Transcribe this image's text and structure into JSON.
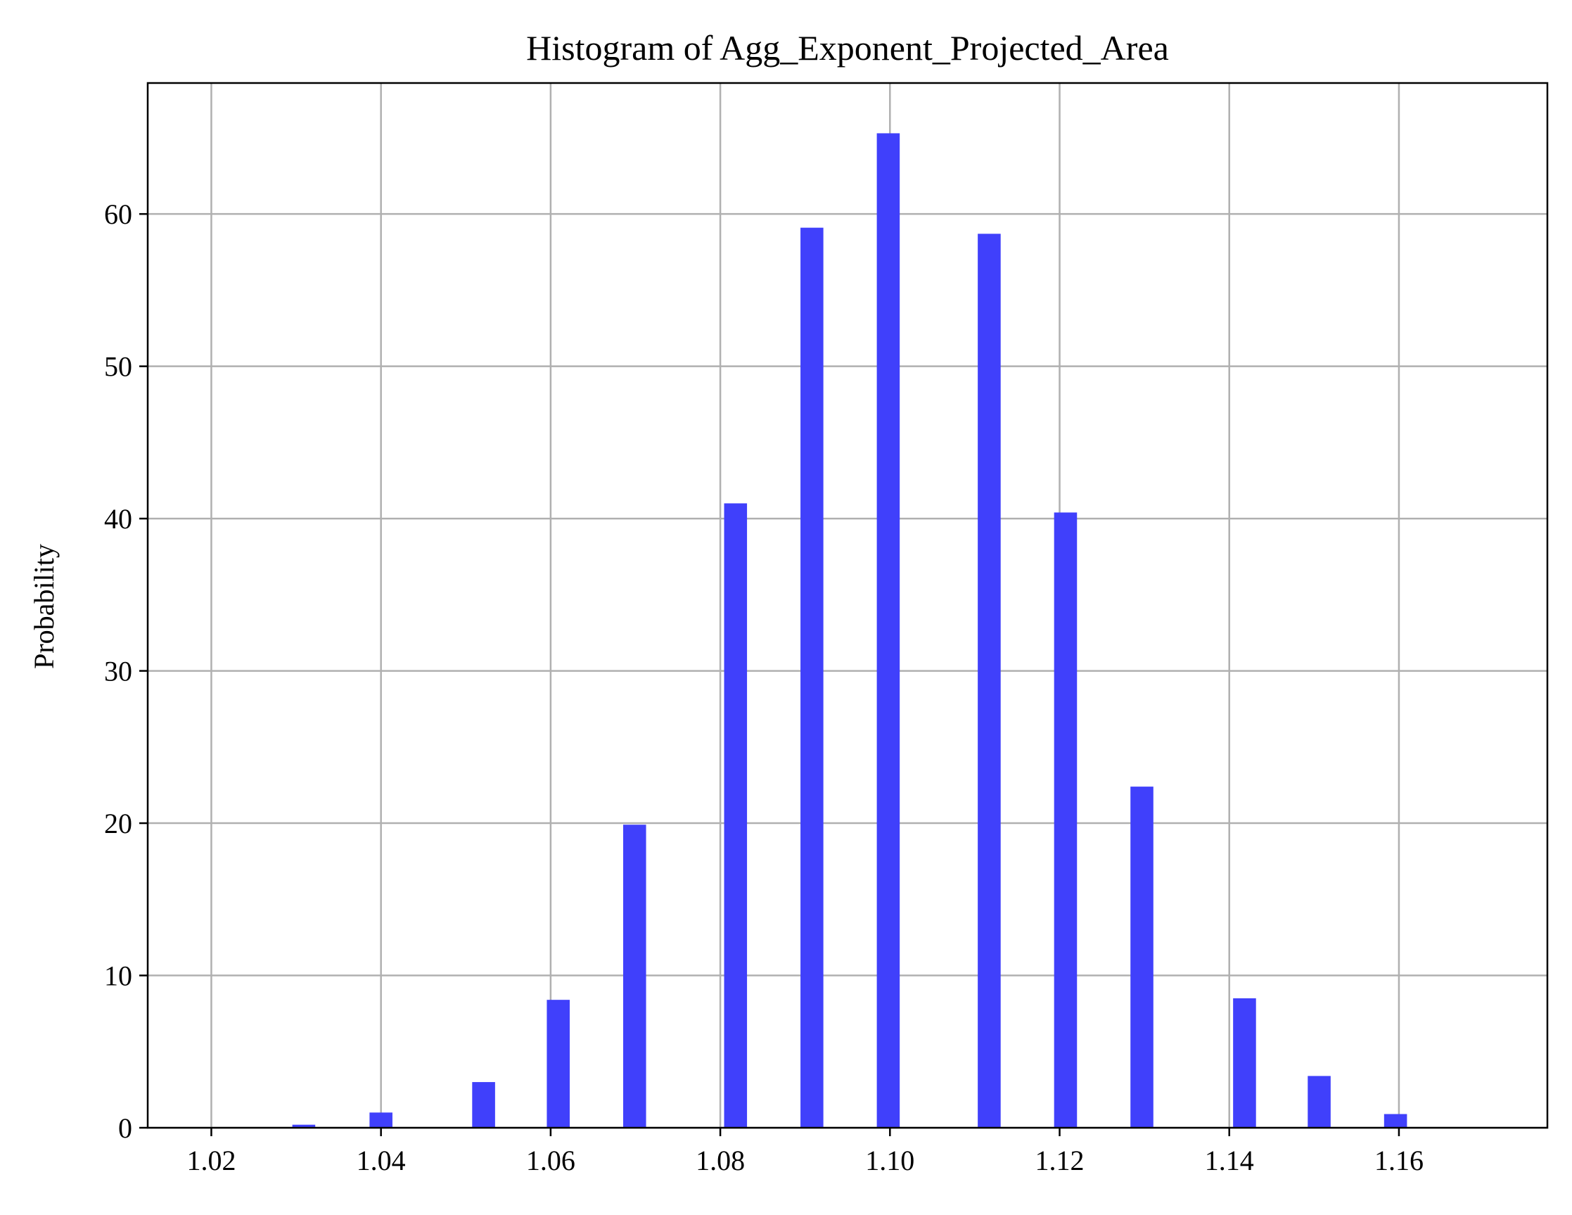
{
  "chart_data": {
    "type": "bar",
    "title": "Histogram of Agg_Exponent_Projected_Area",
    "xlabel": "",
    "ylabel": "Probability",
    "xlim": [
      1.0125,
      1.1775
    ],
    "ylim": [
      0,
      68.6
    ],
    "bin_width": 0.0027,
    "x_ticks": [
      1.02,
      1.04,
      1.06,
      1.08,
      1.1,
      1.12,
      1.14,
      1.16
    ],
    "x_tick_labels": [
      "1.02",
      "1.04",
      "1.06",
      "1.08",
      "1.10",
      "1.12",
      "1.14",
      "1.16"
    ],
    "y_ticks": [
      0,
      10,
      20,
      30,
      40,
      50,
      60
    ],
    "y_tick_labels": [
      "0",
      "10",
      "20",
      "30",
      "40",
      "50",
      "60"
    ],
    "grid": true,
    "color": "#4040fb",
    "bars": [
      {
        "x": 1.0309,
        "value": 0.2
      },
      {
        "x": 1.04,
        "value": 1.0
      },
      {
        "x": 1.0521,
        "value": 3.0
      },
      {
        "x": 1.0609,
        "value": 8.4
      },
      {
        "x": 1.0699,
        "value": 19.9
      },
      {
        "x": 1.0818,
        "value": 41.0
      },
      {
        "x": 1.0908,
        "value": 59.1
      },
      {
        "x": 1.0998,
        "value": 65.3
      },
      {
        "x": 1.1117,
        "value": 58.7
      },
      {
        "x": 1.1207,
        "value": 40.4
      },
      {
        "x": 1.1297,
        "value": 22.4
      },
      {
        "x": 1.1418,
        "value": 8.5
      },
      {
        "x": 1.1506,
        "value": 3.4
      },
      {
        "x": 1.1596,
        "value": 0.9
      }
    ]
  }
}
